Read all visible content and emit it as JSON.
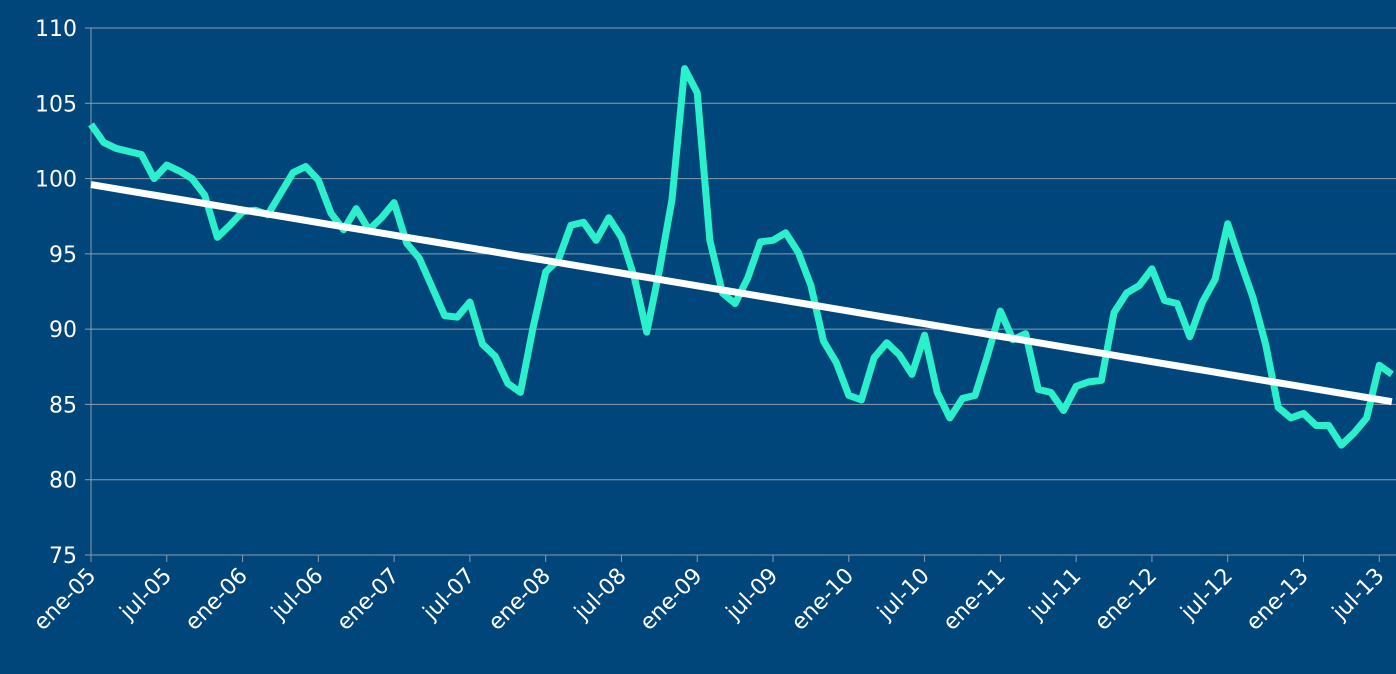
{
  "chart_data": {
    "type": "line",
    "categories": [
      "ene-05",
      null,
      null,
      null,
      null,
      null,
      "jul-05",
      null,
      null,
      null,
      null,
      null,
      "ene-06",
      null,
      null,
      null,
      null,
      null,
      "jul-06",
      null,
      null,
      null,
      null,
      null,
      "ene-07",
      null,
      null,
      null,
      null,
      null,
      "jul-07",
      null,
      null,
      null,
      null,
      null,
      "ene-08",
      null,
      null,
      null,
      null,
      null,
      "jul-08",
      null,
      null,
      null,
      null,
      null,
      "ene-09",
      null,
      null,
      null,
      null,
      null,
      "jul-09",
      null,
      null,
      null,
      null,
      null,
      "ene-10",
      null,
      null,
      null,
      null,
      null,
      "jul-10",
      null,
      null,
      null,
      null,
      null,
      "ene-11",
      null,
      null,
      null,
      null,
      null,
      "jul-11",
      null,
      null,
      null,
      null,
      null,
      "ene-12",
      null,
      null,
      null,
      null,
      null,
      "jul-12",
      null,
      null,
      null,
      null,
      null,
      "ene-13",
      null,
      null,
      null,
      null,
      null,
      "jul-13",
      null
    ],
    "series": [
      {
        "color": "#2af0cc",
        "values": [
          103.6,
          102.4,
          102.0,
          101.8,
          101.6,
          100.0,
          100.9,
          100.5,
          100.0,
          98.9,
          96.1,
          96.9,
          97.8,
          97.9,
          97.6,
          99.0,
          100.4,
          100.8,
          99.9,
          97.7,
          96.6,
          98.0,
          96.6,
          97.4,
          98.4,
          95.7,
          94.7,
          92.8,
          90.9,
          90.8,
          91.8,
          89.0,
          88.2,
          86.4,
          85.8,
          90.1,
          93.8,
          94.6,
          96.9,
          97.1,
          95.9,
          97.4,
          96.1,
          93.5,
          89.8,
          93.9,
          98.6,
          107.3,
          105.7,
          95.9,
          92.4,
          91.7,
          93.4,
          95.8,
          95.9,
          96.4,
          95.1,
          92.9,
          89.2,
          87.8,
          85.6,
          85.3,
          88.1,
          89.1,
          88.3,
          87.0,
          89.6,
          85.8,
          84.1,
          85.4,
          85.6,
          88.3,
          91.2,
          89.3,
          89.7,
          86.0,
          85.8,
          84.6,
          86.2,
          86.5,
          86.6,
          91.1,
          92.4,
          92.9,
          94.0,
          91.9,
          91.7,
          89.5,
          91.8,
          93.3,
          97.0,
          94.5,
          92.1,
          89.0,
          84.8,
          84.1,
          84.4,
          83.6,
          83.6,
          82.3,
          83.1,
          84.1,
          87.6,
          87.0
        ]
      },
      {
        "color": "#ffffff",
        "values": [
          99.6,
          99.46,
          99.32,
          99.18,
          99.04,
          98.9,
          98.76,
          98.62,
          98.48,
          98.34,
          98.2,
          98.06,
          97.92,
          97.78,
          97.64,
          97.5,
          97.36,
          97.22,
          97.08,
          96.94,
          96.8,
          96.66,
          96.52,
          96.38,
          96.24,
          96.1,
          95.96,
          95.82,
          95.68,
          95.54,
          95.4,
          95.26,
          95.12,
          94.98,
          94.84,
          94.7,
          94.56,
          94.42,
          94.28,
          94.14,
          94,
          93.86,
          93.72,
          93.58,
          93.44,
          93.3,
          93.16,
          93.02,
          92.88,
          92.74,
          92.6,
          92.46,
          92.32,
          92.18,
          92.04,
          91.9,
          91.76,
          91.62,
          91.48,
          91.34,
          91.2,
          91.06,
          90.92,
          90.78,
          90.64,
          90.5,
          90.36,
          90.22,
          90.08,
          89.94,
          89.8,
          89.66,
          89.52,
          89.38,
          89.24,
          89.1,
          88.96,
          88.82,
          88.68,
          88.54,
          88.4,
          88.26,
          88.12,
          87.98,
          87.84,
          87.7,
          87.56,
          87.42,
          87.28,
          87.14,
          87,
          86.86,
          86.72,
          86.58,
          86.44,
          86.3,
          86.16,
          86.02,
          85.88,
          85.74,
          85.6,
          85.46,
          85.32,
          85.18
        ]
      }
    ],
    "ylim": [
      75,
      110
    ],
    "yticks": [
      75,
      80,
      85,
      90,
      95,
      100,
      105,
      110
    ],
    "grid": true
  }
}
